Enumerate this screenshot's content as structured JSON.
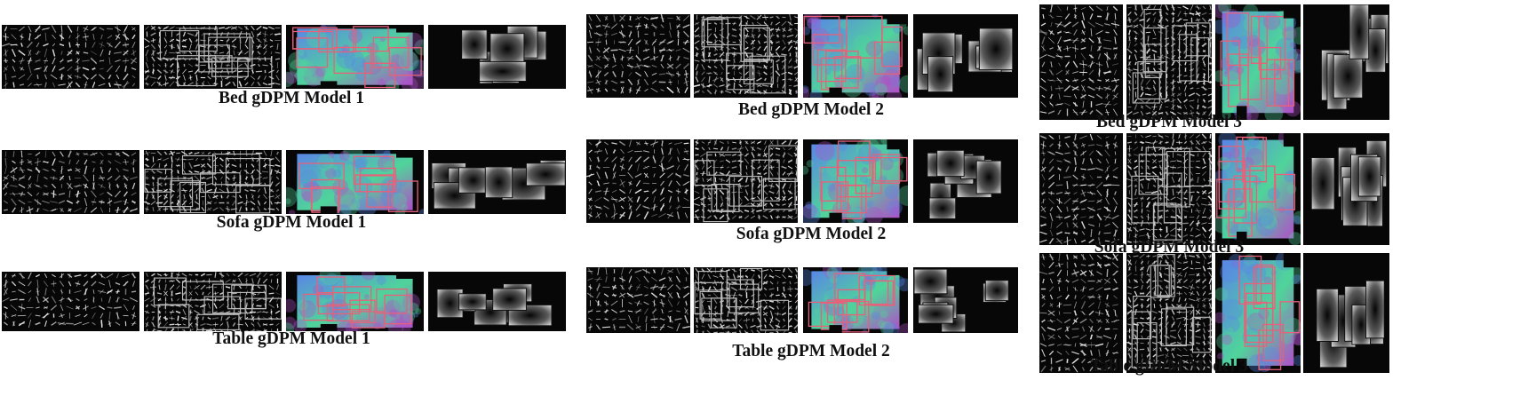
{
  "models": [
    {
      "caption": "Bed gDPM Model 1",
      "column": 1,
      "row": 1,
      "seed": 11
    },
    {
      "caption": "Sofa gDPM Model 1",
      "column": 1,
      "row": 2,
      "seed": 12
    },
    {
      "caption": "Table gDPM Model 1",
      "column": 1,
      "row": 3,
      "seed": 13
    },
    {
      "caption": "Bed gDPM Model 2",
      "column": 2,
      "row": 1,
      "seed": 21
    },
    {
      "caption": "Sofa gDPM Model 2",
      "column": 2,
      "row": 2,
      "seed": 22
    },
    {
      "caption": "Table gDPM Model 2",
      "column": 2,
      "row": 3,
      "seed": 23
    },
    {
      "caption": "Bed gDPM Model 3",
      "column": 3,
      "row": 1,
      "seed": 31
    },
    {
      "caption": "Sofa gDPM Model 3",
      "column": 3,
      "row": 2,
      "seed": 32
    },
    {
      "caption": "Table gDPM Model 3",
      "column": 3,
      "row": 3,
      "seed": 33
    }
  ],
  "panel_kinds": [
    "root-hog-filter",
    "part-hog-filters",
    "part-normal-maps",
    "deformation-costs"
  ],
  "colors": {
    "background": "#ffffff",
    "panel": "#070707",
    "part_box_outline": "#e8607a",
    "hog_stroke": "#e6e6e6",
    "normal_map_green": "#4fd49a",
    "normal_map_blue": "#5a86e6",
    "normal_map_magenta": "#b04fc8"
  }
}
